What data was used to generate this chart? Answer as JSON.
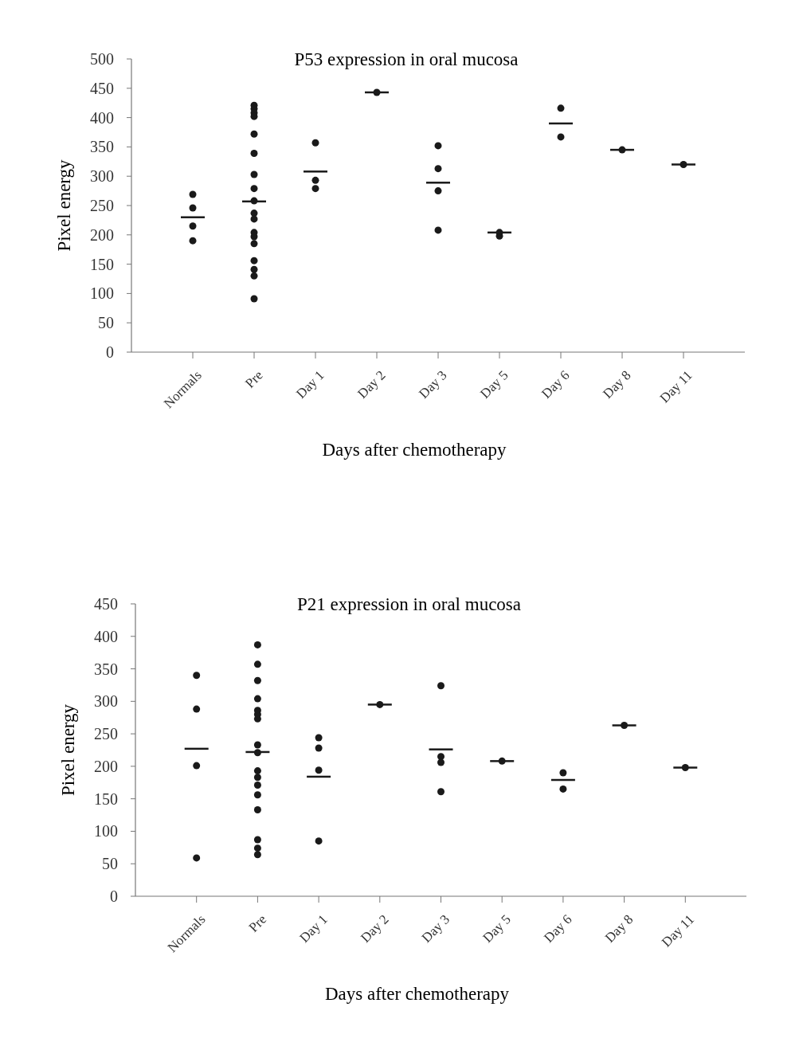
{
  "chart_data": [
    {
      "type": "scatter",
      "title": "P53 expression in oral mucosa",
      "xlabel": "Days after chemotherapy",
      "ylabel": "Pixel energy",
      "categories": [
        "Normals",
        "Pre",
        "Day 1",
        "Day 2",
        "Day 3",
        "Day 5",
        "Day 6",
        "Day 8",
        "Day 11"
      ],
      "ylim": [
        0,
        500
      ],
      "yticks": [
        0,
        50,
        100,
        150,
        200,
        250,
        300,
        350,
        400,
        450,
        500
      ],
      "grid": false,
      "series": [
        {
          "color": "#1a1a1a",
          "marker": "circle",
          "x": [
            "Normals",
            "Normals",
            "Normals",
            "Normals",
            "Pre",
            "Pre",
            "Pre",
            "Pre",
            "Pre",
            "Pre",
            "Pre",
            "Pre",
            "Pre",
            "Pre",
            "Pre",
            "Pre",
            "Pre",
            "Pre",
            "Pre",
            "Pre",
            "Pre",
            "Pre",
            "Day 1",
            "Day 1",
            "Day 1",
            "Day 2",
            "Day 3",
            "Day 3",
            "Day 3",
            "Day 3",
            "Day 5",
            "Day 5",
            "Day 6",
            "Day 6",
            "Day 8",
            "Day 11"
          ],
          "values": [
            269,
            246,
            215,
            190,
            421,
            415,
            408,
            402,
            372,
            339,
            303,
            279,
            258,
            237,
            227,
            204,
            197,
            185,
            156,
            141,
            130,
            91,
            357,
            293,
            279,
            443,
            352,
            313,
            275,
            208,
            204,
            198,
            416,
            367,
            345,
            320
          ]
        },
        {
          "type": "box",
          "color": "#1a1a1a",
          "boxes": [
            {
              "low": 230,
              "q1": 230,
              "median": 230,
              "q3": 230,
              "high": 230
            },
            {
              "low": 257,
              "q1": 257,
              "median": 257,
              "q3": 257,
              "high": 257
            },
            {
              "low": 308,
              "q1": 308,
              "median": 308,
              "q3": 308,
              "high": 308
            },
            {
              "low": 443,
              "q1": 443,
              "median": 443,
              "q3": 443,
              "high": 443
            },
            {
              "low": 289,
              "q1": 289,
              "median": 289,
              "q3": 289,
              "high": 289
            },
            {
              "low": 204,
              "q1": 204,
              "median": 204,
              "q3": 204,
              "high": 204
            },
            {
              "low": 390,
              "q1": 390,
              "median": 390,
              "q3": 390,
              "high": 390
            },
            {
              "low": 345,
              "q1": 345,
              "median": 345,
              "q3": 345,
              "high": 345
            },
            {
              "low": 320,
              "q1": 320,
              "median": 320,
              "q3": 320,
              "high": 320
            }
          ]
        }
      ]
    },
    {
      "type": "scatter",
      "title": "P21 expression in oral mucosa",
      "xlabel": "Days after chemotherapy",
      "ylabel": "Pixel energy",
      "categories": [
        "Normals",
        "Pre",
        "Day 1",
        "Day 2",
        "Day 3",
        "Day 5",
        "Day 6",
        "Day 8",
        "Day 11"
      ],
      "ylim": [
        0,
        450
      ],
      "yticks": [
        0,
        50,
        100,
        150,
        200,
        250,
        300,
        350,
        400,
        450
      ],
      "grid": false,
      "series": [
        {
          "color": "#1a1a1a",
          "marker": "circle",
          "x": [
            "Normals",
            "Normals",
            "Normals",
            "Normals",
            "Pre",
            "Pre",
            "Pre",
            "Pre",
            "Pre",
            "Pre",
            "Pre",
            "Pre",
            "Pre",
            "Pre",
            "Pre",
            "Pre",
            "Pre",
            "Pre",
            "Pre",
            "Pre",
            "Pre",
            "Day 1",
            "Day 1",
            "Day 1",
            "Day 1",
            "Day 2",
            "Day 3",
            "Day 3",
            "Day 3",
            "Day 3",
            "Day 5",
            "Day 6",
            "Day 6",
            "Day 8",
            "Day 11"
          ],
          "values": [
            340,
            288,
            201,
            59,
            387,
            357,
            332,
            304,
            286,
            280,
            273,
            233,
            221,
            193,
            183,
            171,
            156,
            133,
            87,
            74,
            64,
            244,
            228,
            194,
            85,
            295,
            324,
            215,
            206,
            161,
            208,
            190,
            165,
            263,
            198
          ]
        },
        {
          "type": "box",
          "color": "#1a1a1a",
          "boxes": [
            {
              "low": 227,
              "q1": 227,
              "median": 227,
              "q3": 227,
              "high": 227
            },
            {
              "low": 222,
              "q1": 222,
              "median": 222,
              "q3": 222,
              "high": 222
            },
            {
              "low": 184,
              "q1": 184,
              "median": 184,
              "q3": 184,
              "high": 184
            },
            {
              "low": 295,
              "q1": 295,
              "median": 295,
              "q3": 295,
              "high": 295
            },
            {
              "low": 226,
              "q1": 226,
              "median": 226,
              "q3": 226,
              "high": 226
            },
            {
              "low": 208,
              "q1": 208,
              "median": 208,
              "q3": 208,
              "high": 208
            },
            {
              "low": 179,
              "q1": 179,
              "median": 179,
              "q3": 179,
              "high": 179
            },
            {
              "low": 263,
              "q1": 263,
              "median": 263,
              "q3": 263,
              "high": 263
            },
            {
              "low": 198,
              "q1": 198,
              "median": 198,
              "q3": 198,
              "high": 198
            }
          ]
        }
      ]
    }
  ]
}
